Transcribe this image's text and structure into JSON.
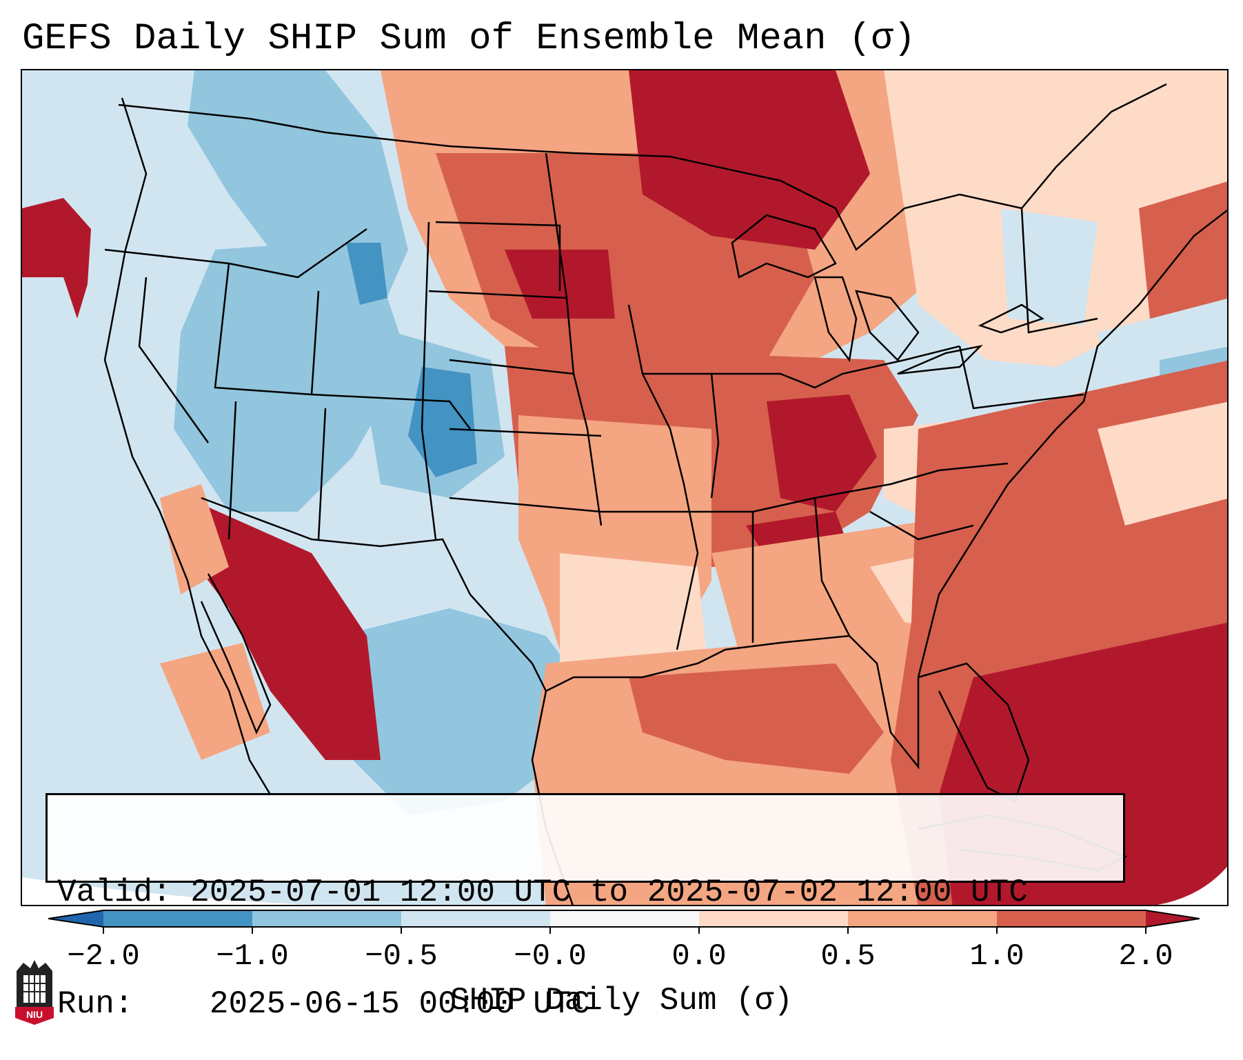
{
  "title": "GEFS Daily SHIP Sum of Ensemble Mean (σ)",
  "map": {
    "description_region": "Continental United States",
    "colors": {
      "neg_2": "#2166ac",
      "neg_1": "#4393c3",
      "neg_05": "#92c5de",
      "neg_0": "#d1e5f0",
      "pos_0": "#fddbc7",
      "pos_05": "#f4a582",
      "pos_1": "#d6604d",
      "pos_2": "#b2182b",
      "border": "#000000"
    }
  },
  "info": {
    "valid_label": "Valid:",
    "valid_value": "2025-07-01 12:00 UTC to 2025-07-02 12:00 UTC",
    "run_label": "Run:",
    "run_value": "2025-06-15 00:00 UTC"
  },
  "colorbar": {
    "tick_labels": [
      "−2.0",
      "−1.0",
      "−0.5",
      "−0.0",
      "0.0",
      "0.5",
      "1.0",
      "2.0"
    ],
    "label": "SHIP Daily Sum (σ)"
  },
  "logo": {
    "text": "NIU"
  }
}
